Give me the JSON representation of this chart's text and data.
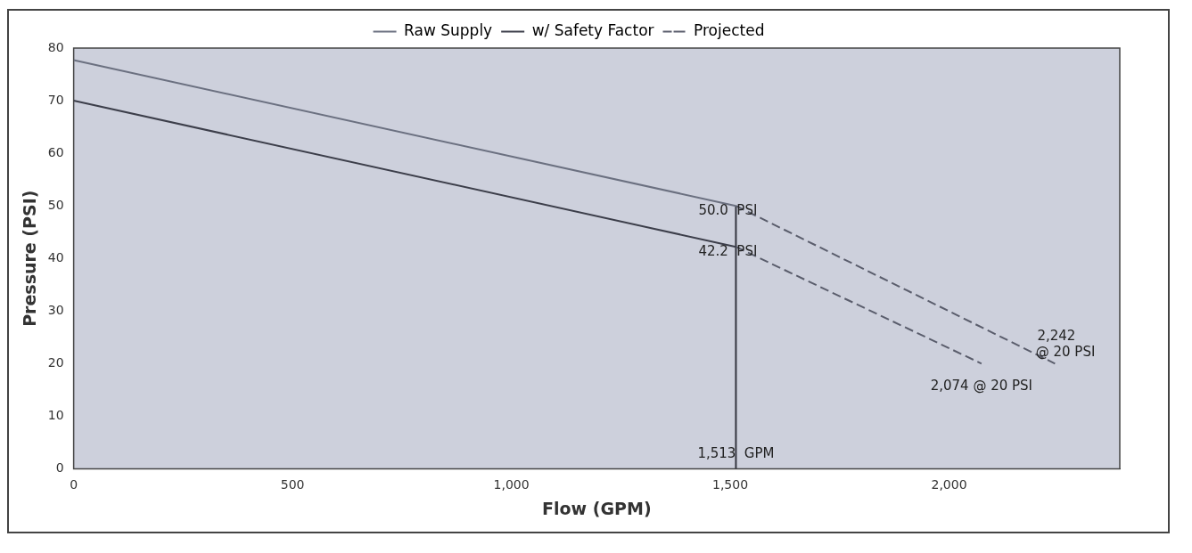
{
  "chart_data": {
    "type": "line",
    "xlabel": "Flow (GPM)",
    "ylabel": "Pressure (PSI)",
    "xlim": [
      0,
      2390
    ],
    "xticks": [
      0,
      500,
      {
        "value": 1000,
        "label": "1,000"
      },
      {
        "value": 1500,
        "label": "1,500"
      },
      {
        "value": 2000,
        "label": "2,000"
      }
    ],
    "ylim": [
      0,
      80
    ],
    "yticks": [
      0,
      10,
      20,
      30,
      40,
      50,
      60,
      70,
      80
    ],
    "series": [
      {
        "name": "Raw Supply",
        "color": "#6b7080",
        "x": [
          0,
          1513
        ],
        "values": [
          77.7,
          50
        ],
        "line_style": "solid"
      },
      {
        "name": "w/ Safety Factor",
        "color": "#3c3e4a",
        "x": [
          0,
          1513
        ],
        "values": [
          70,
          42.2
        ],
        "line_style": "solid"
      },
      {
        "name": "Projected",
        "color": "#5a5d6c",
        "x": [
          1513,
          2242
        ],
        "values": [
          50,
          20
        ],
        "line_style": "dashed"
      },
      {
        "color": "#5a5d6c",
        "x": [
          1513,
          2074
        ],
        "values": [
          42.2,
          20
        ],
        "line_style": "dashed"
      },
      {
        "color": "#35363f",
        "x": [
          1513,
          1513
        ],
        "values": [
          0,
          50
        ],
        "line_style": "solid"
      }
    ],
    "annotations": [
      {
        "text": "50.0  PSI",
        "x": 1513,
        "y": 50
      },
      {
        "text": "42.2  PSI",
        "x": 1513,
        "y": 42.2
      },
      {
        "text": "1,513  GPM",
        "x": 1513,
        "y": 0
      },
      {
        "text": "2,242\n@ 20 PSI",
        "x": 2242,
        "y": 20
      },
      {
        "text": "2,074 @ 20 PSI",
        "x": 2074,
        "y": 20
      }
    ],
    "legend": "top",
    "grid": false,
    "marker": "none"
  }
}
